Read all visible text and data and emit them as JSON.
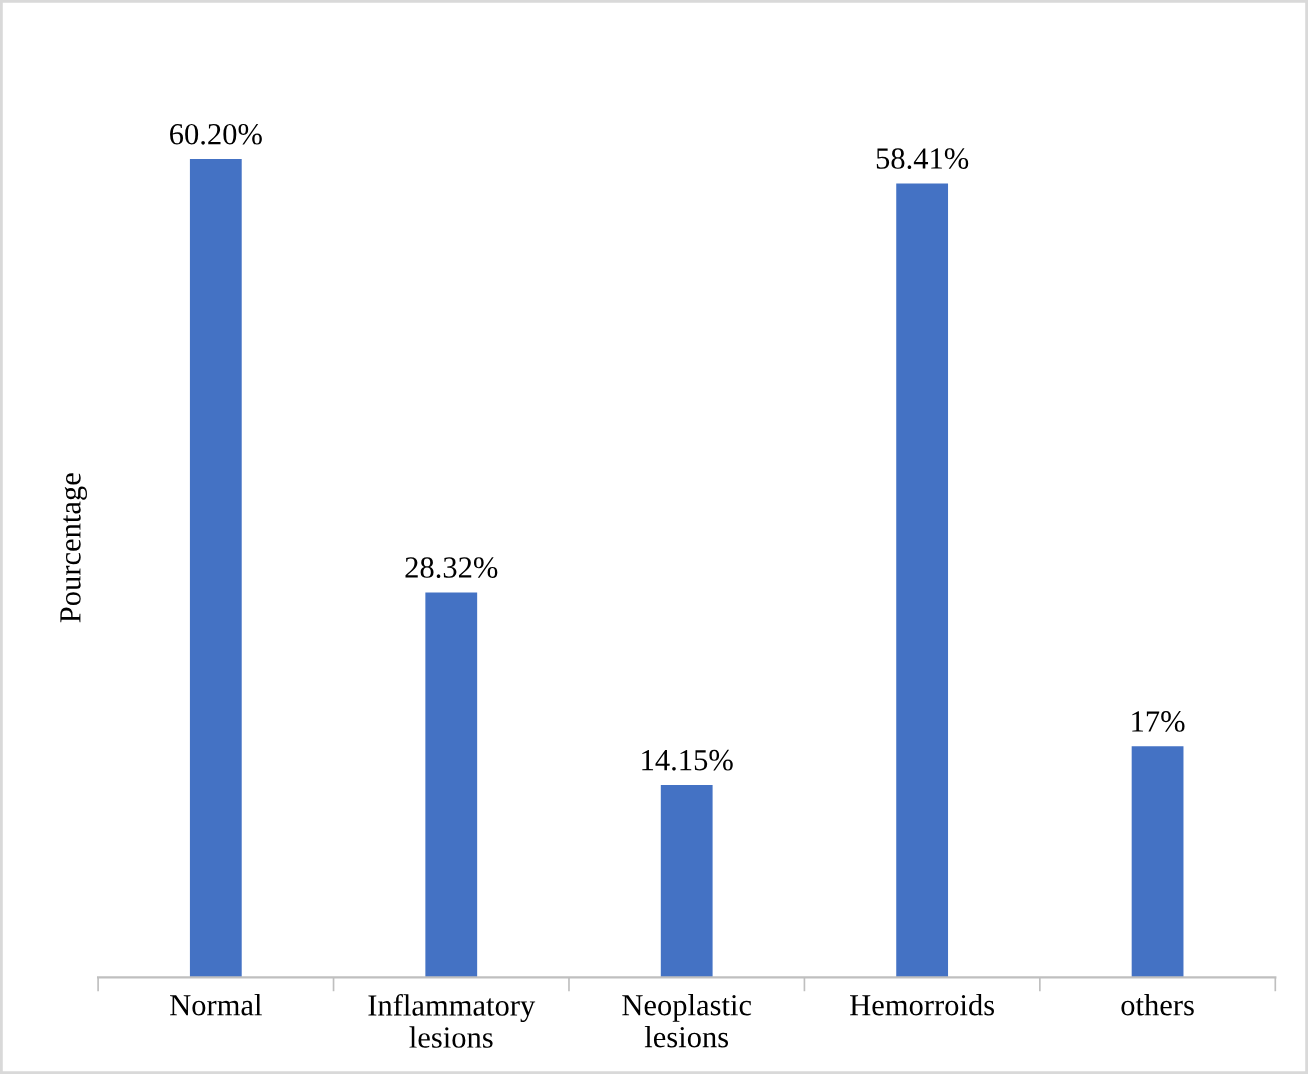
{
  "chart_data": {
    "type": "bar",
    "ylabel": "Pourcentage",
    "categories": [
      "Normal",
      "Inflammatory\nlesions",
      "Neoplastic\nlesions",
      "Hemorroids",
      "others"
    ],
    "values": [
      60.2,
      28.32,
      14.15,
      58.41,
      17
    ],
    "value_labels": [
      "60.20%",
      "28.32%",
      "14.15%",
      "58.41%",
      "17%"
    ],
    "color": "#4472c4"
  }
}
